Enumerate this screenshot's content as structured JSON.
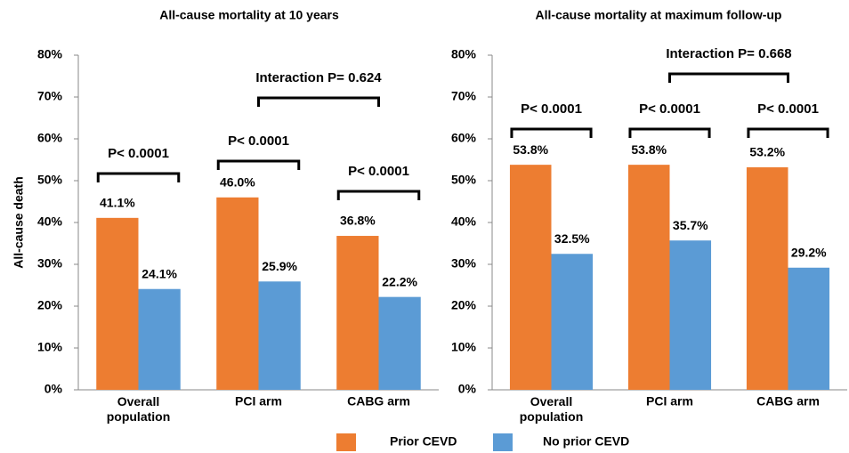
{
  "chart_data": [
    {
      "type": "bar",
      "title": "All-cause mortality at 10 years",
      "y_label": "All-cause death",
      "categories": [
        "Overall\npopulation",
        "PCI arm",
        "CABG arm"
      ],
      "series": [
        {
          "name": "Prior CEVD",
          "color": "#ed7d31",
          "values": [
            41.1,
            46.0,
            36.8
          ],
          "value_labels": [
            "41.1%",
            "46.0%",
            "36.8%"
          ]
        },
        {
          "name": "No prior CEVD",
          "color": "#5b9bd5",
          "values": [
            24.1,
            25.9,
            22.2
          ],
          "value_labels": [
            "24.1%",
            "25.9%",
            "22.2%"
          ]
        }
      ],
      "ylim": [
        0,
        80
      ],
      "yticks": [
        {
          "value": 0,
          "label": "0%"
        },
        {
          "value": 10,
          "label": "10%"
        },
        {
          "value": 20,
          "label": "20%"
        },
        {
          "value": 30,
          "label": "30%"
        },
        {
          "value": 40,
          "label": "40%"
        },
        {
          "value": 50,
          "label": "50%"
        },
        {
          "value": 60,
          "label": "60%"
        },
        {
          "value": 70,
          "label": "70%"
        },
        {
          "value": 80,
          "label": "80%"
        }
      ],
      "annotations": [
        "P< 0.0001",
        "P< 0.0001",
        "P< 0.0001",
        "Interaction P= 0.624"
      ]
    },
    {
      "type": "bar",
      "title": "All-cause mortality at maximum follow-up",
      "categories": [
        "Overall\npopulation",
        "PCI arm",
        "CABG arm"
      ],
      "series": [
        {
          "color": "#ed7d31",
          "values": [
            53.8,
            53.8,
            53.2
          ],
          "value_labels": [
            "53.8%",
            "53.8%",
            "53.2%"
          ]
        },
        {
          "color": "#5b9bd5",
          "values": [
            32.5,
            35.7,
            29.2
          ],
          "value_labels": [
            "32.5%",
            "35.7%",
            "29.2%"
          ]
        }
      ],
      "ylim": [
        0,
        80
      ],
      "yticks": [
        {
          "value": 0,
          "label": "0%"
        },
        {
          "value": 10,
          "label": "10%"
        },
        {
          "value": 20,
          "label": "20%"
        },
        {
          "value": 30,
          "label": "30%"
        },
        {
          "value": 40,
          "label": "40%"
        },
        {
          "value": 50,
          "label": "50%"
        },
        {
          "value": 60,
          "label": "60%"
        },
        {
          "value": 70,
          "label": "70%"
        },
        {
          "value": 80,
          "label": "80%"
        }
      ],
      "annotations": [
        "P< 0.0001",
        "P< 0.0001",
        "P< 0.0001",
        "Interaction P= 0.668"
      ]
    }
  ]
}
